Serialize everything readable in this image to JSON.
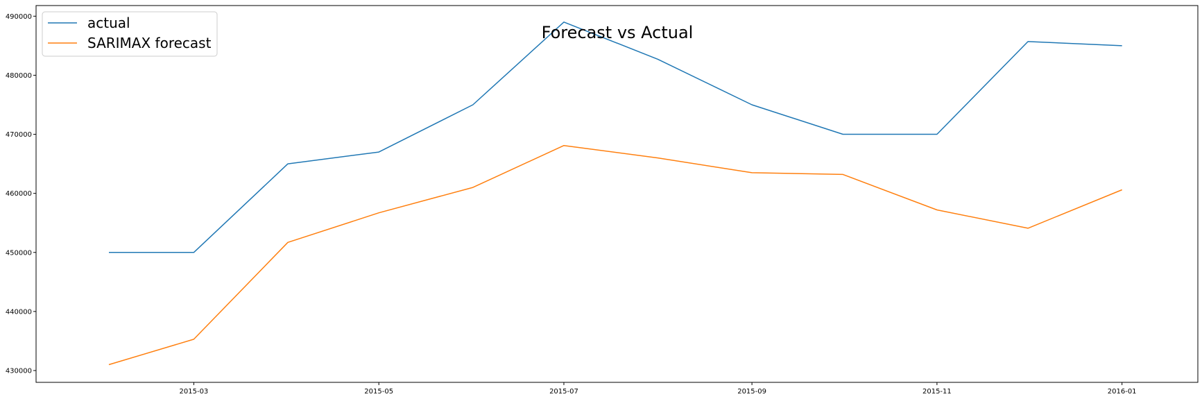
{
  "chart_data": {
    "type": "line",
    "title": "Forecast vs Actual",
    "xlabel": "",
    "ylabel": "",
    "x": [
      "2015-02-01",
      "2015-03-01",
      "2015-04-01",
      "2015-05-01",
      "2015-06-01",
      "2015-07-01",
      "2015-08-01",
      "2015-09-01",
      "2015-10-01",
      "2015-11-01",
      "2015-12-01",
      "2016-01-01"
    ],
    "x_ticks": [
      "2015-03",
      "2015-05",
      "2015-07",
      "2015-09",
      "2015-11",
      "2016-01"
    ],
    "y_ticks": [
      430000,
      440000,
      450000,
      460000,
      470000,
      480000,
      490000
    ],
    "xlim": [
      "2015-01-08",
      "2016-01-26"
    ],
    "ylim": [
      428000,
      491800
    ],
    "grid": false,
    "legend_position": "top-left",
    "series": [
      {
        "name": "actual",
        "color": "#1f77b4",
        "values": [
          450000,
          450000,
          465000,
          467000,
          475000,
          489000,
          482700,
          475000,
          470000,
          470000,
          485700,
          485000
        ]
      },
      {
        "name": "SARIMAX forecast",
        "color": "#ff7f0e",
        "values": [
          431000,
          435300,
          451700,
          456700,
          461000,
          468100,
          466000,
          463500,
          463200,
          457200,
          454100,
          460600
        ]
      }
    ]
  }
}
